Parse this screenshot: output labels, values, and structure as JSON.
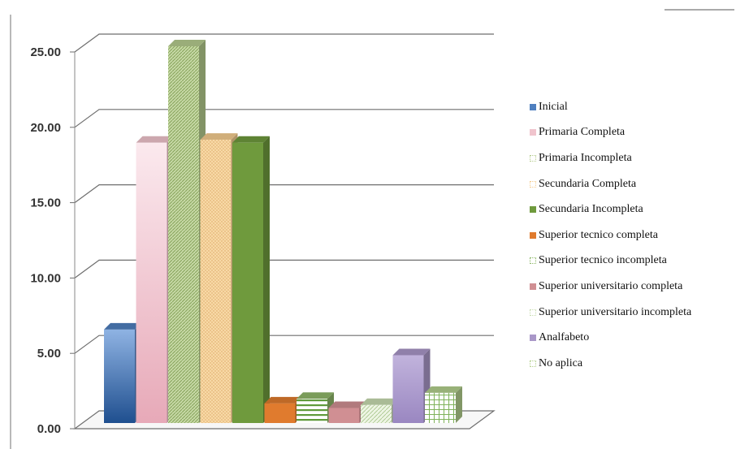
{
  "chart_data": {
    "type": "bar",
    "three_d": true,
    "categories": [
      "Inicial",
      "Primaria Completa",
      "Primaria Incompleta",
      "Secundaria Completa",
      "Secundaria Incompleta",
      "Superior tecnico completa",
      "Superior tecnico incompleta",
      "Superior universitario completa",
      "Superior universitario incompleta",
      "Analfabeto",
      "No aplica"
    ],
    "values": [
      6.2,
      18.6,
      25.0,
      18.8,
      18.6,
      1.3,
      1.6,
      1.0,
      1.2,
      4.5,
      2.0
    ],
    "colors": [
      "#4f7fbf",
      "#f0c4cd",
      "#b5cc8e",
      "#f5cd8f",
      "#6f9a3d",
      "#e07b2e",
      "#8fb86a",
      "#d08f93",
      "#c8dcb0",
      "#a997c8",
      "#b3d08d"
    ],
    "patterns": [
      "solid",
      "solid",
      "diagonal",
      "dots",
      "solid",
      "solid",
      "hlines",
      "solid",
      "diagonal-light",
      "solid",
      "grid"
    ],
    "y_ticks": [
      "0.00",
      "5.00",
      "10.00",
      "15.00",
      "20.00",
      "25.00"
    ],
    "ylim": [
      0,
      25
    ],
    "grid": true,
    "legend_position": "right",
    "title": "",
    "xlabel": "",
    "ylabel": ""
  }
}
